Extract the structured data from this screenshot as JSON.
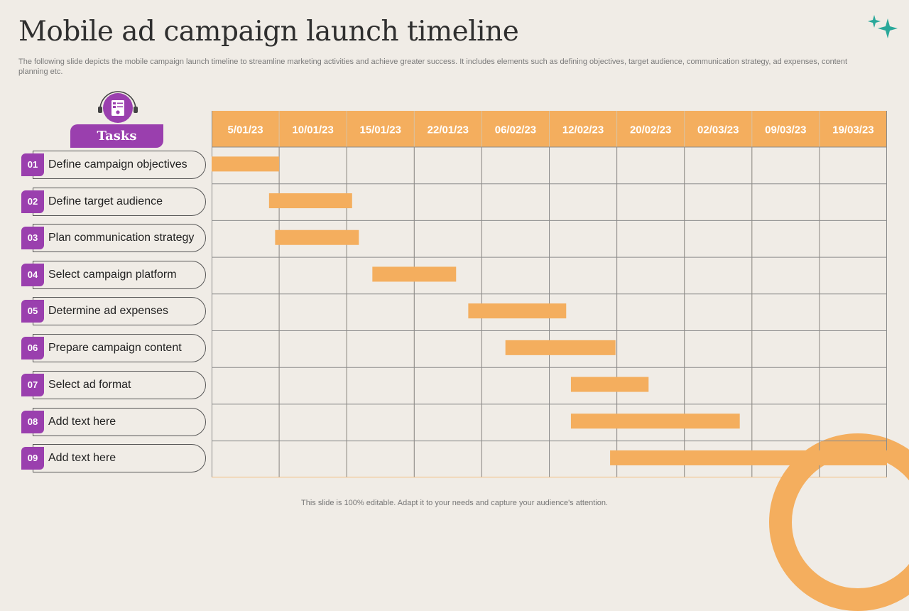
{
  "header": {
    "title": "Mobile ad campaign launch timeline",
    "subtitle": "The following slide depicts the mobile campaign launch timeline to streamline marketing activities and achieve greater success. It includes elements such as defining objectives, target audience, communication strategy, ad expenses, content planning etc."
  },
  "tasks_header": "Tasks",
  "tasks": [
    {
      "num": "01",
      "label": "Define campaign objectives"
    },
    {
      "num": "02",
      "label": "Define target audience"
    },
    {
      "num": "03",
      "label": "Plan communication strategy"
    },
    {
      "num": "04",
      "label": "Select campaign platform"
    },
    {
      "num": "05",
      "label": "Determine ad expenses"
    },
    {
      "num": "06",
      "label": "Prepare campaign content"
    },
    {
      "num": "07",
      "label": "Select ad format"
    },
    {
      "num": "08",
      "label": "Add text here"
    },
    {
      "num": "09",
      "label": "Add text here"
    }
  ],
  "chart_data": {
    "type": "gantt",
    "columns": [
      "5/01/23",
      "10/01/23",
      "15/01/23",
      "22/01/23",
      "06/02/23",
      "12/02/23",
      "20/02/23",
      "02/03/23",
      "09/03/23",
      "19/03/23"
    ],
    "bars": [
      {
        "task": "01",
        "start_col": 0.0,
        "end_col": 1.0
      },
      {
        "task": "02",
        "start_col": 0.85,
        "end_col": 2.08
      },
      {
        "task": "03",
        "start_col": 0.94,
        "end_col": 2.18
      },
      {
        "task": "04",
        "start_col": 2.38,
        "end_col": 3.62
      },
      {
        "task": "05",
        "start_col": 3.8,
        "end_col": 5.25
      },
      {
        "task": "06",
        "start_col": 4.35,
        "end_col": 5.98
      },
      {
        "task": "07",
        "start_col": 5.32,
        "end_col": 6.47
      },
      {
        "task": "08",
        "start_col": 5.32,
        "end_col": 7.82
      },
      {
        "task": "09",
        "start_col": 5.9,
        "end_col": 10.0
      }
    ],
    "colors": {
      "header": "#f4ae5e",
      "bar": "#f4ae5e",
      "header_text": "#ffffff",
      "grid": "#8c8c8c"
    }
  },
  "colors": {
    "accent": "#9a3fae",
    "orange": "#f4ae5e",
    "teal": "#2aa89a",
    "background": "#f0ece6"
  },
  "footer": "This slide is 100% editable. Adapt it to your needs and capture your audience's attention."
}
